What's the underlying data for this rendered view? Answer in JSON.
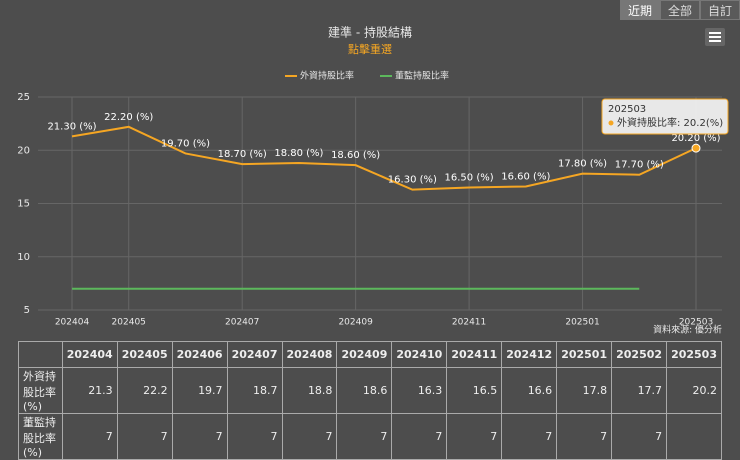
{
  "controls": {
    "buttons": [
      "近期",
      "全部",
      "自訂"
    ]
  },
  "chart_data": {
    "type": "line",
    "title": "建準 - 持股結構",
    "subtitle": "點擊重選",
    "categories": [
      "202404",
      "202405",
      null,
      "202407",
      null,
      "202409",
      null,
      "202411",
      null,
      "202501",
      null,
      "202503"
    ],
    "series": [
      {
        "name": "外資持股比率",
        "color": "#f5a623",
        "values": [
          21.3,
          22.2,
          19.7,
          18.7,
          18.8,
          18.6,
          16.3,
          16.5,
          16.6,
          17.8,
          17.7,
          20.2
        ],
        "value_labels": [
          "21.30 (%)",
          "22.20 (%)",
          "19.70 (%)",
          "18.70 (%)",
          "18.80 (%)",
          "18.60 (%)",
          "16.30 (%)",
          "16.50 (%)",
          "16.60 (%)",
          "17.80 (%)",
          "17.70 (%)",
          "20.20 (%)"
        ]
      },
      {
        "name": "董監持股比率",
        "color": "#5cb85c",
        "values": [
          7,
          7,
          7,
          7,
          7,
          7,
          7,
          7,
          7,
          7,
          7,
          null
        ]
      }
    ],
    "ylim": [
      5,
      25
    ],
    "yticks": [
      5,
      10,
      15,
      20,
      25
    ],
    "grid": true,
    "tooltip": {
      "title": "202503",
      "text": "外資持股比率: 20.2(%)"
    },
    "credits": "資料來源: 優分析"
  },
  "table": {
    "header": [
      null,
      "202404",
      "202405",
      "202406",
      "202407",
      "202408",
      "202409",
      "202410",
      "202411",
      "202412",
      "202501",
      "202502",
      "202503"
    ],
    "rows": [
      [
        "外資持股比率(%)",
        21.3,
        22.2,
        19.7,
        18.7,
        18.8,
        18.6,
        16.3,
        16.5,
        16.6,
        17.8,
        17.7,
        20.2
      ],
      [
        "董監持股比率(%)",
        7,
        7,
        7,
        7,
        7,
        7,
        7,
        7,
        7,
        7,
        7,
        null
      ]
    ]
  }
}
